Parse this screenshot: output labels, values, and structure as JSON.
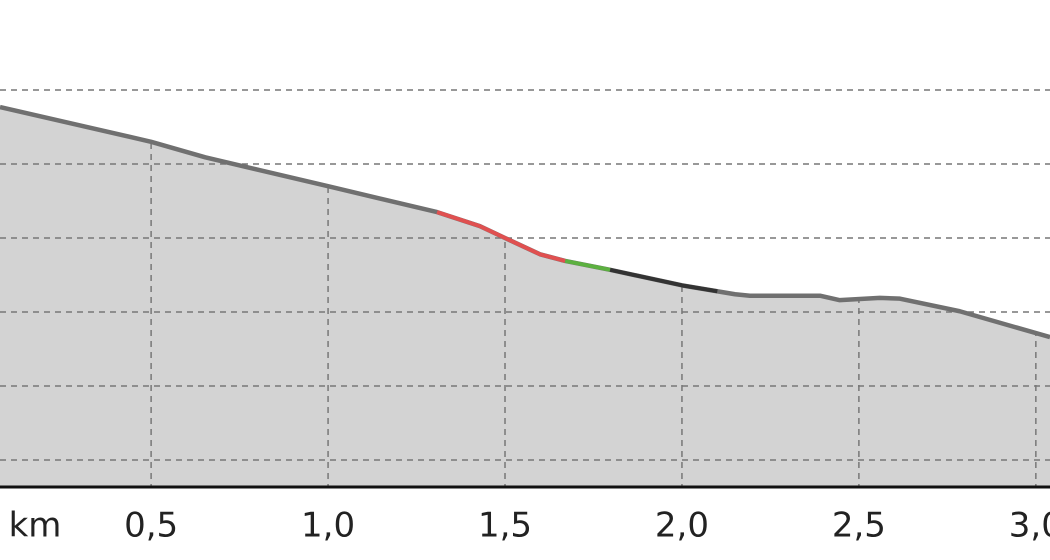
{
  "chart_data": {
    "type": "area",
    "x_label": "km",
    "fill": "#d3d3d3",
    "grid": true,
    "xlim": [
      0.073,
      3.04
    ],
    "ylim": [
      0.635,
      7.216
    ],
    "xticks": [
      {
        "value": 0.5,
        "label": "0,5"
      },
      {
        "value": 1.0,
        "label": "1,0"
      },
      {
        "value": 1.5,
        "label": "1,5"
      },
      {
        "value": 2.0,
        "label": "2,0"
      },
      {
        "value": 2.5,
        "label": "2,5"
      },
      {
        "value": 3.0,
        "label": "3,0"
      }
    ],
    "yticks": [
      1,
      2,
      3,
      4,
      5,
      6
    ],
    "series": [
      {
        "color": "#707070",
        "x": [
          0.073,
          0.5,
          0.653,
          1.0,
          1.308,
          1.429,
          1.5,
          1.599,
          1.67,
          1.797,
          2.0,
          2.15,
          2.192,
          2.39,
          2.446,
          2.559,
          2.616,
          2.785,
          3.04
        ],
        "values": [
          5.77,
          5.3,
          5.09,
          4.7,
          4.35,
          4.16,
          4.0,
          3.78,
          3.69,
          3.57,
          3.36,
          3.24,
          3.22,
          3.22,
          3.16,
          3.19,
          3.18,
          3.01,
          2.66
        ]
      },
      {
        "color": "#e05050",
        "x": [
          1.308,
          1.429,
          1.5,
          1.599,
          1.67
        ],
        "values": [
          4.35,
          4.16,
          4.0,
          3.78,
          3.69
        ]
      },
      {
        "color": "#5cb040",
        "x": [
          1.67,
          1.797
        ],
        "values": [
          3.69,
          3.57
        ]
      },
      {
        "color": "#333333",
        "x": [
          1.797,
          2.0,
          2.1
        ],
        "values": [
          3.57,
          3.36,
          3.28
        ]
      }
    ]
  }
}
